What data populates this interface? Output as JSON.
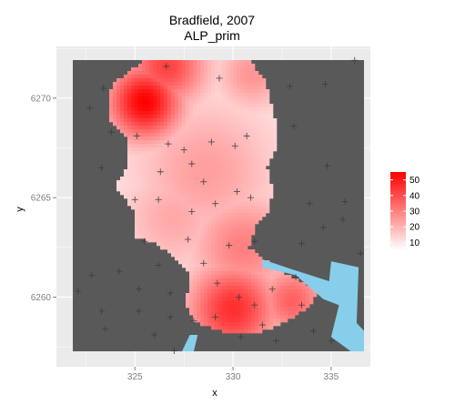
{
  "chart_data": {
    "type": "heatmap",
    "title_line1": "Bradfield, 2007",
    "title_line2": "ALP_prim",
    "xlabel": "x",
    "ylabel": "y",
    "xlim": [
      321,
      337
    ],
    "ylim": [
      6256.5,
      6272.6
    ],
    "x_ticks": [
      325,
      330,
      335
    ],
    "y_ticks": [
      6260,
      6265,
      6270
    ],
    "x_tick_labels": [
      "325",
      "330",
      "335"
    ],
    "y_tick_labels": [
      "6260",
      "6265",
      "6270"
    ],
    "grid": true,
    "legend_position": "right",
    "legend": {
      "min": 5,
      "max": 55,
      "ticks": [
        10,
        20,
        30,
        40,
        50
      ],
      "tick_labels": [
        "10",
        "20",
        "30",
        "40",
        "50"
      ],
      "low_color": "#ffffff",
      "high_color": "#ff0000"
    },
    "colors": {
      "panel_background": "#595959",
      "grid_line": "#ebebeb",
      "plot_background": "#ebebeb",
      "water": "#87ceeb",
      "marker": "#3a3a3a"
    },
    "region_outline": [
      [
        324.0,
        6270.8
      ],
      [
        325.3,
        6271.8
      ],
      [
        326.4,
        6272.5
      ],
      [
        328.7,
        6272.5
      ],
      [
        330.6,
        6272.1
      ],
      [
        331.6,
        6271.0
      ],
      [
        332.1,
        6269.2
      ],
      [
        332.3,
        6267.6
      ],
      [
        331.7,
        6266.6
      ],
      [
        332.0,
        6265.6
      ],
      [
        331.9,
        6264.5
      ],
      [
        331.2,
        6263.6
      ],
      [
        330.8,
        6262.5
      ],
      [
        331.6,
        6261.9
      ],
      [
        332.6,
        6261.2
      ],
      [
        334.5,
        6260.3
      ],
      [
        333.6,
        6259.3
      ],
      [
        332.4,
        6258.6
      ],
      [
        331.2,
        6258.2
      ],
      [
        329.6,
        6258.2
      ],
      [
        328.1,
        6258.7
      ],
      [
        327.6,
        6259.6
      ],
      [
        327.8,
        6261.1
      ],
      [
        327.0,
        6262.0
      ],
      [
        326.1,
        6262.7
      ],
      [
        325.0,
        6263.0
      ],
      [
        324.9,
        6264.4
      ],
      [
        324.0,
        6265.6
      ],
      [
        324.7,
        6266.7
      ],
      [
        324.6,
        6268.0
      ],
      [
        323.6,
        6269.0
      ],
      [
        323.6,
        6270.0
      ]
    ],
    "hotspots": [
      {
        "x": 325.5,
        "y": 6269.8,
        "value": 55,
        "spread": 1.3
      },
      {
        "x": 326.6,
        "y": 6271.6,
        "value": 42,
        "spread": 1.4
      },
      {
        "x": 331.0,
        "y": 6271.2,
        "value": 26,
        "spread": 1.2
      },
      {
        "x": 330.0,
        "y": 6259.4,
        "value": 46,
        "spread": 1.6
      },
      {
        "x": 333.0,
        "y": 6259.8,
        "value": 36,
        "spread": 1.2
      },
      {
        "x": 328.6,
        "y": 6266.3,
        "value": 24,
        "spread": 2.4
      },
      {
        "x": 327.0,
        "y": 6264.0,
        "value": 22,
        "spread": 1.8
      },
      {
        "x": 330.5,
        "y": 6262.5,
        "value": 30,
        "spread": 1.8
      }
    ],
    "base_value": 10,
    "water_polygons": [
      [
        [
          331.5,
          6261.9
        ],
        [
          333.0,
          6261.4
        ],
        [
          334.9,
          6260.8
        ],
        [
          335.0,
          6261.8
        ],
        [
          336.4,
          6261.5
        ],
        [
          336.3,
          6258.7
        ],
        [
          337.0,
          6258.3
        ],
        [
          337.0,
          6256.5
        ],
        [
          336.0,
          6256.8
        ],
        [
          335.0,
          6258.0
        ],
        [
          335.4,
          6259.6
        ],
        [
          334.6,
          6259.9
        ],
        [
          333.2,
          6261.1
        ],
        [
          331.5,
          6261.5
        ]
      ],
      [
        [
          327.8,
          6258.1
        ],
        [
          328.2,
          6258.1
        ],
        [
          328.0,
          6256.5
        ],
        [
          327.4,
          6256.5
        ]
      ]
    ],
    "sites": [
      [
        325.3,
        6272.2
      ],
      [
        326.6,
        6271.6
      ],
      [
        323.4,
        6270.5
      ],
      [
        328.7,
        6272.5
      ],
      [
        322.7,
        6269.5
      ],
      [
        323.8,
        6268.3
      ],
      [
        325.1,
        6268.1
      ],
      [
        326.7,
        6267.7
      ],
      [
        327.5,
        6267.4
      ],
      [
        328.9,
        6267.8
      ],
      [
        330.1,
        6267.6
      ],
      [
        330.7,
        6268.1
      ],
      [
        329.3,
        6271.0
      ],
      [
        332.9,
        6270.6
      ],
      [
        334.7,
        6270.7
      ],
      [
        336.2,
        6271.9
      ],
      [
        333.1,
        6268.6
      ],
      [
        334.8,
        6266.6
      ],
      [
        321.3,
        6266.7
      ],
      [
        323.3,
        6266.5
      ],
      [
        326.3,
        6266.3
      ],
      [
        327.9,
        6266.7
      ],
      [
        328.5,
        6265.8
      ],
      [
        330.2,
        6265.3
      ],
      [
        327.9,
        6264.3
      ],
      [
        326.2,
        6264.9
      ],
      [
        325.0,
        6264.9
      ],
      [
        329.1,
        6264.7
      ],
      [
        330.9,
        6265.0
      ],
      [
        333.9,
        6264.7
      ],
      [
        335.7,
        6264.8
      ],
      [
        335.6,
        6263.9
      ],
      [
        334.6,
        6263.5
      ],
      [
        321.6,
        6263.0
      ],
      [
        325.5,
        6262.8
      ],
      [
        327.7,
        6262.9
      ],
      [
        329.8,
        6262.6
      ],
      [
        331.1,
        6262.8
      ],
      [
        333.5,
        6262.7
      ],
      [
        336.5,
        6262.2
      ],
      [
        321.3,
        6261.6
      ],
      [
        322.8,
        6261.1
      ],
      [
        324.2,
        6261.3
      ],
      [
        326.2,
        6261.6
      ],
      [
        328.5,
        6261.7
      ],
      [
        329.2,
        6260.7
      ],
      [
        330.3,
        6260.0
      ],
      [
        332.0,
        6260.4
      ],
      [
        333.2,
        6261.0
      ],
      [
        322.1,
        6260.3
      ],
      [
        325.2,
        6260.4
      ],
      [
        326.8,
        6260.2
      ],
      [
        323.3,
        6259.3
      ],
      [
        325.2,
        6259.3
      ],
      [
        326.8,
        6259.0
      ],
      [
        328.0,
        6258.8
      ],
      [
        329.1,
        6259.0
      ],
      [
        331.1,
        6259.6
      ],
      [
        331.5,
        6258.6
      ],
      [
        333.5,
        6259.6
      ],
      [
        334.1,
        6258.3
      ],
      [
        321.6,
        6258.4
      ],
      [
        323.5,
        6258.4
      ],
      [
        326.0,
        6258.1
      ],
      [
        330.4,
        6258.0
      ],
      [
        332.2,
        6257.8
      ],
      [
        335.0,
        6257.8
      ],
      [
        322.3,
        6257.2
      ],
      [
        324.4,
        6257.1
      ],
      [
        327.0,
        6257.3
      ],
      [
        329.9,
        6257.0
      ],
      [
        331.8,
        6257.2
      ],
      [
        333.5,
        6257.0
      ]
    ]
  }
}
